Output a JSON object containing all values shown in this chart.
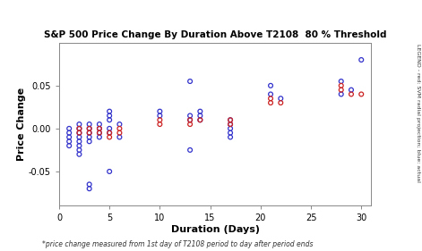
{
  "title": "S&P 500 Price Change By Duration Above T2108  80 % Threshold",
  "xlabel": "Duration (Days)",
  "ylabel": "Price Change",
  "footnote": "*price change measured from 1st day of T2108 period to day after period ends",
  "legend_text": "LEGEND - red: SVM radial projection; blue: actual",
  "xlim": [
    0,
    31
  ],
  "ylim": [
    -0.09,
    0.1
  ],
  "xticks": [
    0,
    5,
    10,
    15,
    20,
    25,
    30
  ],
  "yticks": [
    -0.05,
    0.0,
    0.05
  ],
  "blue_points": [
    [
      1,
      -0.005
    ],
    [
      1,
      -0.01
    ],
    [
      1,
      -0.015
    ],
    [
      1,
      0.0
    ],
    [
      1,
      -0.02
    ],
    [
      2,
      0.0
    ],
    [
      2,
      -0.005
    ],
    [
      2,
      -0.01
    ],
    [
      2,
      -0.015
    ],
    [
      2,
      0.005
    ],
    [
      2,
      -0.02
    ],
    [
      2,
      -0.025
    ],
    [
      2,
      -0.03
    ],
    [
      3,
      0.0
    ],
    [
      3,
      -0.005
    ],
    [
      3,
      -0.01
    ],
    [
      3,
      -0.015
    ],
    [
      3,
      0.005
    ],
    [
      3,
      -0.065
    ],
    [
      3,
      -0.07
    ],
    [
      4,
      0.005
    ],
    [
      4,
      0.0
    ],
    [
      4,
      -0.005
    ],
    [
      4,
      -0.01
    ],
    [
      5,
      0.02
    ],
    [
      5,
      0.015
    ],
    [
      5,
      0.01
    ],
    [
      5,
      0.0
    ],
    [
      5,
      -0.005
    ],
    [
      5,
      -0.05
    ],
    [
      6,
      0.005
    ],
    [
      6,
      -0.01
    ],
    [
      10,
      0.02
    ],
    [
      10,
      0.015
    ],
    [
      13,
      0.055
    ],
    [
      13,
      0.015
    ],
    [
      13,
      0.01
    ],
    [
      13,
      -0.025
    ],
    [
      14,
      0.02
    ],
    [
      14,
      0.015
    ],
    [
      14,
      0.01
    ],
    [
      17,
      0.01
    ],
    [
      17,
      0.005
    ],
    [
      17,
      0.0
    ],
    [
      17,
      -0.005
    ],
    [
      17,
      -0.01
    ],
    [
      21,
      0.05
    ],
    [
      21,
      0.04
    ],
    [
      22,
      0.035
    ],
    [
      28,
      0.055
    ],
    [
      28,
      0.04
    ],
    [
      29,
      0.045
    ],
    [
      30,
      0.08
    ]
  ],
  "red_points": [
    [
      2,
      0.0
    ],
    [
      2,
      -0.005
    ],
    [
      3,
      0.0
    ],
    [
      3,
      -0.005
    ],
    [
      4,
      0.0
    ],
    [
      4,
      -0.005
    ],
    [
      5,
      -0.005
    ],
    [
      5,
      -0.01
    ],
    [
      6,
      0.0
    ],
    [
      6,
      -0.005
    ],
    [
      10,
      0.01
    ],
    [
      10,
      0.005
    ],
    [
      13,
      0.01
    ],
    [
      13,
      0.005
    ],
    [
      14,
      0.01
    ],
    [
      17,
      0.01
    ],
    [
      17,
      0.005
    ],
    [
      21,
      0.03
    ],
    [
      21,
      0.035
    ],
    [
      22,
      0.03
    ],
    [
      28,
      0.045
    ],
    [
      28,
      0.05
    ],
    [
      29,
      0.04
    ],
    [
      30,
      0.04
    ]
  ],
  "bg_color": "#ffffff",
  "blue_color": "#3333cc",
  "red_color": "#cc2222",
  "marker_size": 12,
  "marker_lw": 0.9
}
